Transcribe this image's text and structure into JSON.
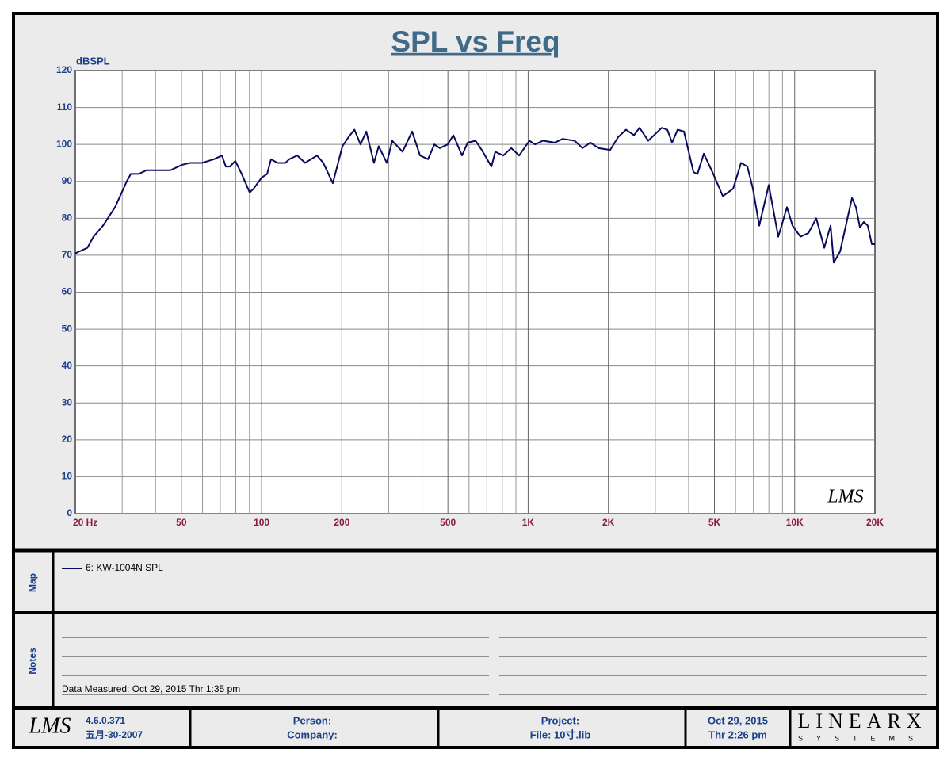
{
  "chart_data": {
    "type": "line",
    "title": "SPL vs Freq",
    "y_label": "dBSPL",
    "watermark": "LMS",
    "x": [
      20,
      20.7,
      22.2,
      23.4,
      25.4,
      28.2,
      31.2,
      32.3,
      34.6,
      37,
      41,
      45.5,
      50.4,
      54,
      59.8,
      66.3,
      71,
      73.4,
      76,
      79.7,
      84.2,
      90.2,
      93.3,
      100,
      104.9,
      108.5,
      114.6,
      122.8,
      127,
      136,
      145.7,
      161.4,
      170.4,
      185,
      201,
      212,
      223,
      235,
      247,
      264,
      275,
      295,
      309,
      338,
      367,
      393,
      421,
      445,
      466,
      499,
      524,
      565,
      593,
      635,
      670,
      728,
      753,
      807,
      864,
      925,
      1011,
      1061,
      1136,
      1259,
      1348,
      1494,
      1600,
      1713,
      1834,
      2032,
      2177,
      2330,
      2496,
      2618,
      2822,
      3171,
      3327,
      3468,
      3638,
      3843,
      4172,
      4318,
      4561,
      4950,
      5374,
      5875,
      6292,
      6646,
      6971,
      7363,
      7993,
      8678,
      9356,
      9816,
      10510,
      11258,
      12052,
      12908,
      13636,
      14014,
      14804,
      16404,
      16974,
      17566,
      18168,
      18800,
      19464,
      20000
    ],
    "series": [
      {
        "name": "6: KW-1004N SPL",
        "color": "#0a0a5c",
        "values": [
          70.5,
          71,
          72,
          75,
          78,
          83,
          90,
          92,
          92,
          93,
          93,
          93,
          94.5,
          95,
          95,
          96,
          97,
          94,
          94,
          95.5,
          92,
          87,
          88,
          91,
          92,
          96,
          95,
          95,
          96,
          97,
          95,
          97,
          95,
          89.5,
          99.5,
          102,
          104,
          100,
          103.5,
          95,
          99.5,
          95,
          101,
          98,
          103.5,
          97,
          96,
          100,
          99,
          100,
          102.5,
          97,
          100.5,
          101,
          98.5,
          94,
          98,
          97,
          99,
          97,
          101,
          100,
          101,
          100.5,
          101.5,
          101,
          99,
          100.5,
          99,
          98.5,
          102,
          104,
          102.5,
          104.5,
          101,
          104.5,
          104,
          100.5,
          104,
          103.5,
          92.5,
          92,
          97.5,
          92,
          86,
          88,
          95,
          94,
          88,
          78,
          89,
          75,
          83,
          78,
          75,
          76,
          80,
          72,
          78,
          68,
          71,
          85.5,
          83,
          77.5,
          79,
          78,
          73,
          73
        ]
      }
    ],
    "xlim": [
      20,
      20000
    ],
    "ylim": [
      0,
      120
    ],
    "log_x": true,
    "grid": true,
    "xticks": [
      {
        "value": 20,
        "label": "20  Hz"
      },
      50,
      100,
      200,
      500,
      {
        "value": 1000,
        "label": "1K"
      },
      {
        "value": 2000,
        "label": "2K"
      },
      {
        "value": 5000,
        "label": "5K"
      },
      {
        "value": 10000,
        "label": "10K"
      },
      {
        "value": 20000,
        "label": "20K"
      }
    ],
    "x_minor_ticks": [
      30,
      40,
      60,
      70,
      80,
      90,
      300,
      400,
      600,
      700,
      800,
      900,
      3000,
      4000,
      6000,
      7000,
      8000,
      9000
    ],
    "yticks": [
      0,
      10,
      20,
      30,
      40,
      50,
      60,
      70,
      80,
      90,
      100,
      110,
      120
    ]
  },
  "map_panel": {
    "label": "Map"
  },
  "notes_panel": {
    "label": "Notes",
    "text": "Data Measured: Oct 29, 2015  Thr  1:35 pm"
  },
  "footer": {
    "logo": "LMS",
    "version": "4.6.0.371",
    "build_date": "五月-30-2007",
    "person": "Person:",
    "company": "Company:",
    "project": "Project:",
    "file": "File: 10寸.lib",
    "date": "Oct 29, 2015",
    "time": "Thr  2:26 pm",
    "brand": "LINEARX",
    "brand_sub": "SYSTEMS"
  }
}
